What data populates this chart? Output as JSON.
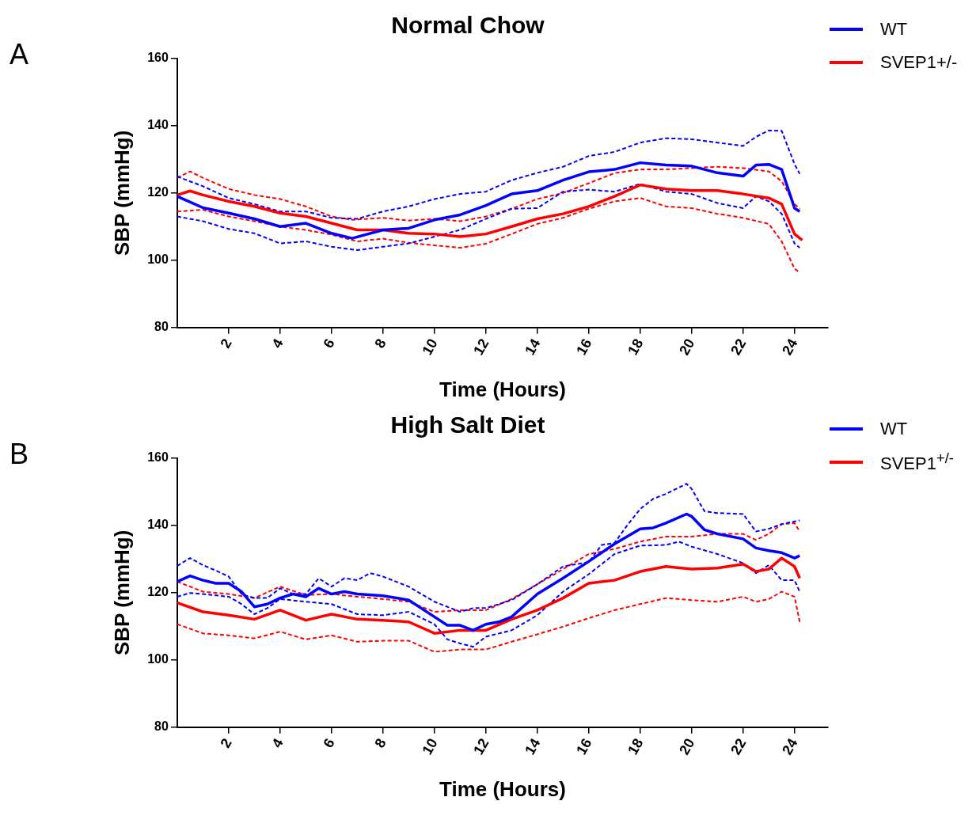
{
  "chart_data": [
    {
      "type": "line",
      "title": "Normal Chow",
      "xlabel": "Time (Hours)",
      "ylabel": "SBP (mmHg)",
      "annotations": [
        "A"
      ],
      "xlim": [
        0,
        25.3
      ],
      "xticks": [
        2,
        4,
        6,
        8,
        10,
        12,
        14,
        16,
        18,
        20,
        22,
        24
      ],
      "ylim": [
        80,
        160
      ],
      "yticks": [
        80,
        100,
        120,
        140,
        160
      ],
      "grid": false,
      "legend": "top right",
      "marker": "none",
      "series": [
        {
          "name": "WT",
          "color": "#0000ff",
          "line_style": "solid",
          "x": [
            0,
            1,
            2,
            3,
            4,
            5,
            6,
            6.8,
            8,
            9,
            10,
            11,
            12,
            13,
            14,
            15,
            16,
            17,
            18,
            19,
            20,
            21,
            22,
            22.5,
            23,
            23.5,
            24,
            24.2
          ],
          "values": [
            119,
            115.6,
            114,
            112.3,
            110,
            111,
            108,
            106.5,
            109,
            109.5,
            112,
            113.5,
            116.3,
            119.7,
            120.7,
            123.8,
            126.3,
            127,
            129,
            128.3,
            128,
            126,
            125,
            128.3,
            128.5,
            127,
            115.5,
            114.5
          ]
        },
        {
          "name": "SVEP1+/-",
          "color": "#ff0000",
          "line_style": "solid",
          "x": [
            0,
            0.5,
            1,
            2,
            3,
            4,
            5,
            6,
            7,
            8,
            9,
            10,
            11,
            12,
            13,
            14,
            15,
            16,
            17,
            18,
            19,
            20,
            21,
            22,
            23,
            23.5,
            24,
            24.3
          ],
          "values": [
            119.4,
            120.6,
            119.4,
            117.5,
            116,
            114,
            113,
            111,
            109,
            109,
            108,
            107.8,
            107,
            107.8,
            110,
            112.3,
            113.8,
            116,
            119,
            122.4,
            121.2,
            120.7,
            120.7,
            119.7,
            118.5,
            116.7,
            107.8,
            106
          ]
        },
        {
          "color": "#0000ff",
          "line_style": "dashed",
          "x": [
            0,
            1,
            2,
            3,
            4,
            5,
            6,
            7,
            8,
            9,
            10,
            11,
            12,
            13,
            14,
            15,
            16,
            17,
            18,
            19,
            20,
            21,
            22,
            22.5,
            23,
            23.5,
            24,
            24.2
          ],
          "values": [
            124.9,
            122,
            118.5,
            116.7,
            114.5,
            114.5,
            112.6,
            112.3,
            114.5,
            116,
            118.2,
            119.7,
            120.4,
            123.8,
            126,
            127.8,
            131,
            132.2,
            135,
            136.3,
            136,
            135,
            134,
            136.7,
            138.6,
            138.5,
            128.6,
            125.7
          ]
        },
        {
          "color": "#0000ff",
          "line_style": "dashed",
          "x": [
            0,
            1,
            2,
            3,
            4,
            5,
            6,
            7,
            8,
            9,
            10,
            11,
            12,
            13,
            14,
            15,
            16,
            17,
            18,
            19,
            20,
            21,
            22,
            22.5,
            23,
            23.5,
            24,
            24.2
          ],
          "values": [
            113,
            111.6,
            109.3,
            108,
            105,
            105.6,
            104,
            103,
            104,
            105,
            107,
            109,
            112.3,
            115.3,
            115.5,
            120.4,
            121,
            120.4,
            122.7,
            120.4,
            119.7,
            117,
            115.5,
            119,
            117.5,
            113.8,
            105,
            103.7
          ]
        },
        {
          "color": "#ff0000",
          "line_style": "dashed",
          "x": [
            0,
            0.5,
            1,
            2,
            3,
            4,
            5,
            6,
            6.8,
            8,
            9,
            10,
            11,
            12,
            13,
            14,
            15,
            16,
            17,
            18,
            19,
            20,
            21,
            22,
            23,
            23.5,
            24,
            24.2
          ],
          "values": [
            124.5,
            126.4,
            124.5,
            121.2,
            119.4,
            118.2,
            116,
            113,
            112,
            112.6,
            111.8,
            112.3,
            111.6,
            113,
            115.3,
            118.2,
            120,
            122.9,
            125.9,
            127,
            127,
            127.4,
            127.8,
            127.4,
            126.4,
            123.5,
            116.7,
            115.3
          ]
        },
        {
          "color": "#ff0000",
          "line_style": "dashed",
          "x": [
            0,
            1,
            2,
            3,
            4,
            5,
            6,
            7,
            8,
            9,
            10,
            11,
            12,
            13,
            14,
            15,
            16,
            17,
            18,
            19,
            20,
            21,
            22,
            23,
            23.5,
            24,
            24.2
          ],
          "values": [
            114.5,
            115,
            113,
            111.6,
            110,
            109,
            107.6,
            105.6,
            106.4,
            105.2,
            104.4,
            103.7,
            104.9,
            107.8,
            110.8,
            112.6,
            115.3,
            117.5,
            118.5,
            116,
            115.5,
            113.8,
            112.6,
            110.8,
            105.6,
            97.5,
            96.3
          ]
        }
      ]
    },
    {
      "type": "line",
      "title": "High Salt Diet",
      "xlabel": "Time (Hours)",
      "ylabel": "SBP (mmHg)",
      "annotations": [
        "B"
      ],
      "xlim": [
        0,
        25.3
      ],
      "xticks": [
        2,
        4,
        6,
        8,
        10,
        12,
        14,
        16,
        18,
        20,
        22,
        24
      ],
      "ylim": [
        80,
        160
      ],
      "yticks": [
        80,
        100,
        120,
        140,
        160
      ],
      "grid": false,
      "legend": "top right",
      "marker": "none",
      "series": [
        {
          "name": "WT",
          "color": "#0000ff",
          "line_style": "solid",
          "x": [
            0,
            0.5,
            1,
            1.5,
            2,
            2.5,
            3,
            3.5,
            4,
            4.5,
            5,
            5.5,
            6,
            6.5,
            7,
            8,
            9,
            10,
            10.5,
            11,
            11.5,
            12,
            12.5,
            13,
            14,
            15,
            16,
            17,
            18,
            18.5,
            19,
            19.8,
            20,
            20.5,
            21,
            22,
            22.5,
            23,
            23.5,
            24,
            24.2
          ],
          "values": [
            123.3,
            125,
            123.7,
            122.8,
            122.8,
            120.3,
            115.8,
            116.6,
            118.4,
            119.6,
            118.8,
            121.3,
            119.6,
            120.3,
            119.6,
            119.1,
            117.8,
            112.8,
            110.3,
            110.3,
            108.8,
            110.6,
            111.3,
            112.8,
            119.6,
            124.3,
            129.3,
            134.5,
            139,
            139.3,
            140.7,
            143.4,
            142.7,
            138.7,
            137.5,
            136,
            133.3,
            132.5,
            131.9,
            130.3,
            131
          ]
        },
        {
          "name": "SVEP1$^{+/-}$",
          "color": "#ff0000",
          "line_style": "solid",
          "x": [
            0,
            1,
            2,
            3,
            4,
            5,
            6,
            7,
            8,
            9,
            10,
            11,
            12,
            13,
            14,
            15,
            16,
            17,
            18,
            19,
            20,
            21,
            22,
            22.5,
            23,
            23.5,
            24,
            24.2
          ],
          "values": [
            117,
            114.3,
            113.3,
            112.1,
            114.8,
            111.8,
            113.6,
            112.1,
            111.8,
            111.3,
            107.9,
            108.8,
            108.8,
            112.1,
            114.8,
            118.4,
            122.8,
            123.7,
            126.3,
            127.8,
            127,
            127.3,
            128.5,
            126.3,
            127,
            130.3,
            127.8,
            124.3
          ]
        },
        {
          "color": "#0000ff",
          "line_style": "dashed",
          "x": [
            0,
            0.5,
            1,
            1.5,
            2,
            2.5,
            3,
            3.5,
            4,
            4.5,
            5,
            5.5,
            6,
            6.5,
            7,
            7.5,
            8,
            9,
            10,
            10.5,
            11,
            11.5,
            12,
            13,
            14,
            15,
            16,
            16.5,
            17,
            17.5,
            18,
            18.5,
            19,
            19.8,
            20,
            20.5,
            21,
            22,
            22.5,
            23,
            23.5,
            24,
            24.2
          ],
          "values": [
            128,
            130.3,
            128.2,
            126.6,
            124.8,
            119.6,
            118.4,
            118.4,
            121.3,
            119.6,
            119.6,
            124.3,
            121.8,
            124.3,
            123.7,
            125.8,
            124.8,
            121.8,
            117.3,
            115.8,
            114.3,
            115.4,
            115.4,
            117.8,
            122.5,
            127.8,
            129.1,
            134.2,
            134.8,
            140.1,
            144.9,
            147.9,
            149.4,
            152.4,
            150.9,
            144.2,
            143.7,
            143.4,
            138.2,
            139,
            140.4,
            141.2,
            141.5
          ]
        },
        {
          "color": "#0000ff",
          "line_style": "dashed",
          "x": [
            0,
            0.5,
            1,
            2,
            2.5,
            3,
            3.5,
            4,
            5,
            6,
            7,
            8,
            9,
            10,
            10.5,
            11,
            11.5,
            12,
            13,
            14,
            15,
            16,
            17,
            18,
            19,
            19.5,
            20,
            21,
            22,
            22.5,
            23,
            23.5,
            24,
            24.2
          ],
          "values": [
            118.8,
            119.9,
            119.6,
            118.8,
            116.6,
            113.6,
            115.4,
            118.1,
            117.3,
            116.6,
            113.6,
            113.3,
            114.3,
            110.6,
            106.1,
            104.9,
            103.9,
            106.9,
            108.8,
            113.3,
            120.3,
            125.5,
            131.5,
            134,
            134.2,
            135.2,
            133.7,
            131.5,
            128.8,
            125.8,
            128.2,
            123.7,
            123.7,
            120.3
          ]
        },
        {
          "color": "#ff0000",
          "line_style": "dashed",
          "x": [
            0,
            1,
            2,
            3,
            4,
            5,
            6,
            7,
            8,
            9,
            10,
            11,
            12,
            13,
            14,
            15,
            16,
            17,
            18,
            19,
            20,
            21,
            22,
            22.5,
            23,
            23.5,
            24,
            24.2
          ],
          "values": [
            123.3,
            120.3,
            119.6,
            118.4,
            121.8,
            119.3,
            119.6,
            118.8,
            118.1,
            117.3,
            114.3,
            114.8,
            114.8,
            118.1,
            122.5,
            127,
            131.5,
            133,
            135.2,
            136.7,
            136.7,
            137.5,
            137.5,
            135.7,
            137.5,
            140.4,
            140.7,
            138.2
          ]
        },
        {
          "color": "#ff0000",
          "line_style": "dashed",
          "x": [
            0,
            1,
            2,
            3,
            4,
            5,
            6,
            7,
            8,
            9,
            10,
            11,
            12,
            13,
            14,
            15,
            16,
            17,
            18,
            19,
            20,
            21,
            22,
            22.5,
            23,
            23.5,
            24,
            24.2
          ],
          "values": [
            110.6,
            107.9,
            107.3,
            106.4,
            108.4,
            106.1,
            107.3,
            105.4,
            105.7,
            105.7,
            102.4,
            103.1,
            103.1,
            105.4,
            107.6,
            109.9,
            112.4,
            114.8,
            116.6,
            118.4,
            117.8,
            117.3,
            118.8,
            117.3,
            118.1,
            120.3,
            118.8,
            111.3
          ]
        }
      ]
    }
  ]
}
